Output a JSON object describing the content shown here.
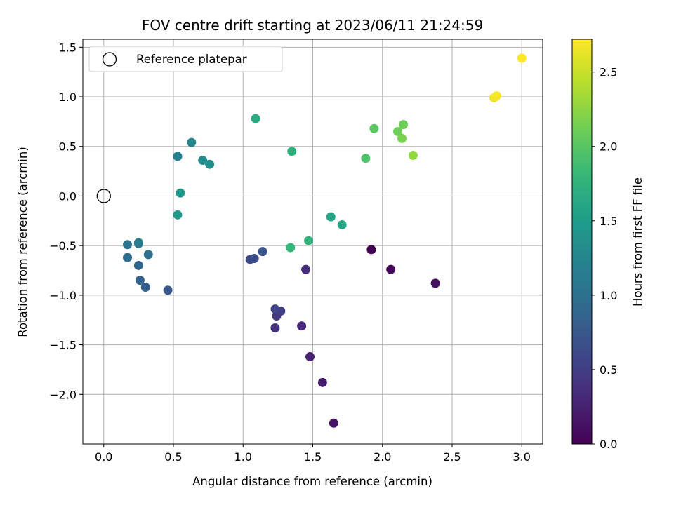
{
  "chart_data": {
    "type": "scatter",
    "title": "FOV centre drift starting at 2023/06/11 21:24:59",
    "xlabel": "Angular distance from reference (arcmin)",
    "ylabel": "Rotation from reference (arcmin)",
    "xlim": [
      -0.15,
      3.15
    ],
    "ylim": [
      -2.5,
      1.58
    ],
    "xticks": [
      0.0,
      0.5,
      1.0,
      1.5,
      2.0,
      2.5,
      3.0
    ],
    "xtick_labels": [
      "0.0",
      "0.5",
      "1.0",
      "1.5",
      "2.0",
      "2.5",
      "3.0"
    ],
    "yticks": [
      -2.0,
      -1.5,
      -1.0,
      -0.5,
      0.0,
      0.5,
      1.0,
      1.5
    ],
    "ytick_labels": [
      "−2.0",
      "−1.5",
      "−1.0",
      "−0.5",
      "0.0",
      "0.5",
      "1.0",
      "1.5"
    ],
    "grid": true,
    "legend": {
      "position": "top-left",
      "entries": [
        {
          "label": "Reference platepar",
          "marker": "open-circle"
        }
      ]
    },
    "reference_point": {
      "x": 0.0,
      "y": 0.0
    },
    "colorbar": {
      "label": "Hours from first FF file",
      "colormap": "viridis",
      "range": [
        0.0,
        2.72
      ],
      "ticks": [
        0.0,
        0.5,
        1.0,
        1.5,
        2.0,
        2.5
      ],
      "tick_labels": [
        "0.0",
        "0.5",
        "1.0",
        "1.5",
        "2.0",
        "2.5"
      ]
    },
    "points": [
      {
        "x": 1.92,
        "y": -0.54,
        "c": 0.0
      },
      {
        "x": 2.06,
        "y": -0.74,
        "c": 0.05
      },
      {
        "x": 2.38,
        "y": -0.88,
        "c": 0.1
      },
      {
        "x": 1.65,
        "y": -2.29,
        "c": 0.15
      },
      {
        "x": 1.57,
        "y": -1.88,
        "c": 0.2
      },
      {
        "x": 1.48,
        "y": -1.62,
        "c": 0.25
      },
      {
        "x": 1.42,
        "y": -1.31,
        "c": 0.3
      },
      {
        "x": 1.45,
        "y": -0.74,
        "c": 0.35
      },
      {
        "x": 1.23,
        "y": -1.33,
        "c": 0.4
      },
      {
        "x": 1.24,
        "y": -1.21,
        "c": 0.45
      },
      {
        "x": 1.27,
        "y": -1.16,
        "c": 0.5
      },
      {
        "x": 1.23,
        "y": -1.14,
        "c": 0.55
      },
      {
        "x": 1.05,
        "y": -0.64,
        "c": 0.6
      },
      {
        "x": 1.08,
        "y": -0.63,
        "c": 0.65
      },
      {
        "x": 1.14,
        "y": -0.56,
        "c": 0.7
      },
      {
        "x": 0.46,
        "y": -0.95,
        "c": 0.75
      },
      {
        "x": 0.3,
        "y": -0.92,
        "c": 0.8
      },
      {
        "x": 0.26,
        "y": -0.85,
        "c": 0.85
      },
      {
        "x": 0.25,
        "y": -0.7,
        "c": 0.9
      },
      {
        "x": 0.17,
        "y": -0.62,
        "c": 0.95
      },
      {
        "x": 0.32,
        "y": -0.59,
        "c": 1.0
      },
      {
        "x": 0.17,
        "y": -0.49,
        "c": 1.05
      },
      {
        "x": 0.25,
        "y": -0.48,
        "c": 1.1
      },
      {
        "x": 0.25,
        "y": -0.47,
        "c": 1.15
      },
      {
        "x": 0.53,
        "y": 0.4,
        "c": 1.2
      },
      {
        "x": 0.63,
        "y": 0.54,
        "c": 1.25
      },
      {
        "x": 0.71,
        "y": 0.36,
        "c": 1.3
      },
      {
        "x": 0.76,
        "y": 0.32,
        "c": 1.35
      },
      {
        "x": 0.55,
        "y": 0.03,
        "c": 1.42
      },
      {
        "x": 0.53,
        "y": -0.19,
        "c": 1.47
      },
      {
        "x": 1.63,
        "y": -0.21,
        "c": 1.58
      },
      {
        "x": 1.71,
        "y": -0.29,
        "c": 1.62
      },
      {
        "x": 1.09,
        "y": 0.78,
        "c": 1.67
      },
      {
        "x": 1.35,
        "y": 0.45,
        "c": 1.72
      },
      {
        "x": 1.47,
        "y": -0.45,
        "c": 1.77
      },
      {
        "x": 1.34,
        "y": -0.52,
        "c": 1.8
      },
      {
        "x": 1.88,
        "y": 0.38,
        "c": 1.95
      },
      {
        "x": 1.94,
        "y": 0.68,
        "c": 2.02
      },
      {
        "x": 2.11,
        "y": 0.65,
        "c": 2.1
      },
      {
        "x": 2.15,
        "y": 0.72,
        "c": 2.12
      },
      {
        "x": 2.14,
        "y": 0.58,
        "c": 2.17
      },
      {
        "x": 2.22,
        "y": 0.41,
        "c": 2.27
      },
      {
        "x": 2.8,
        "y": 0.99,
        "c": 2.66
      },
      {
        "x": 2.82,
        "y": 1.01,
        "c": 2.69
      },
      {
        "x": 3.0,
        "y": 1.39,
        "c": 2.72
      }
    ]
  }
}
